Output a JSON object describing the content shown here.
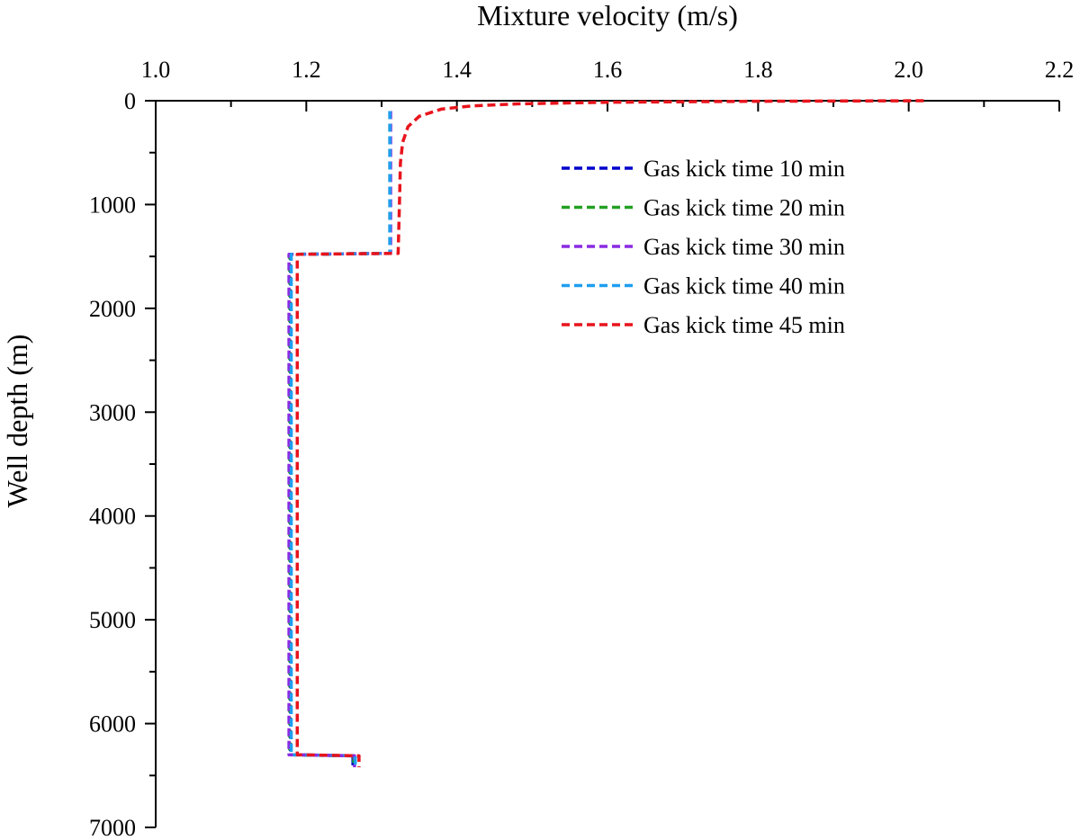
{
  "chart_data": {
    "type": "line",
    "xlabel": "Mixture velocity (m/s)",
    "ylabel": "Well depth (m)",
    "xlim": [
      1.0,
      2.2
    ],
    "ylim": [
      7000,
      0
    ],
    "x_axis_position": "top",
    "y_axis_inverted": true,
    "grid": false,
    "legend_position": "top-right",
    "x_ticks": [
      1.0,
      1.2,
      1.4,
      1.6,
      1.8,
      2.0,
      2.2
    ],
    "x_tick_labels": [
      "1.0",
      "1.2",
      "1.4",
      "1.6",
      "1.8",
      "2.0",
      "2.2"
    ],
    "y_ticks": [
      0,
      1000,
      2000,
      3000,
      4000,
      5000,
      6000,
      7000
    ],
    "y_tick_labels": [
      "0",
      "1000",
      "2000",
      "3000",
      "4000",
      "5000",
      "6000",
      "7000"
    ],
    "series": [
      {
        "name": "Gas kick time 10 min",
        "color": "#0000cc",
        "points": [
          [
            1.311,
            100
          ],
          [
            1.311,
            1470
          ],
          [
            1.179,
            1480
          ],
          [
            1.179,
            6300
          ],
          [
            1.262,
            6310
          ],
          [
            1.262,
            6420
          ]
        ]
      },
      {
        "name": "Gas kick time 20 min",
        "color": "#22a022",
        "points": [
          [
            1.311,
            100
          ],
          [
            1.311,
            1470
          ],
          [
            1.178,
            1480
          ],
          [
            1.178,
            6300
          ],
          [
            1.263,
            6310
          ],
          [
            1.263,
            6420
          ]
        ]
      },
      {
        "name": "Gas kick time 30 min",
        "color": "#8a2be2",
        "points": [
          [
            1.312,
            100
          ],
          [
            1.312,
            1470
          ],
          [
            1.177,
            1480
          ],
          [
            1.177,
            6300
          ],
          [
            1.264,
            6310
          ],
          [
            1.264,
            6420
          ]
        ]
      },
      {
        "name": "Gas kick time 40 min",
        "color": "#1e9ef0",
        "points": [
          [
            1.311,
            100
          ],
          [
            1.311,
            1470
          ],
          [
            1.18,
            1480
          ],
          [
            1.18,
            6300
          ],
          [
            1.265,
            6310
          ],
          [
            1.265,
            6420
          ]
        ]
      },
      {
        "name": "Gas kick time 45 min",
        "color": "#e8141c",
        "points": [
          [
            2.02,
            0
          ],
          [
            1.8,
            5
          ],
          [
            1.6,
            15
          ],
          [
            1.48,
            30
          ],
          [
            1.42,
            50
          ],
          [
            1.38,
            80
          ],
          [
            1.35,
            150
          ],
          [
            1.335,
            250
          ],
          [
            1.328,
            400
          ],
          [
            1.325,
            600
          ],
          [
            1.324,
            900
          ],
          [
            1.323,
            1200
          ],
          [
            1.322,
            1470
          ],
          [
            1.188,
            1480
          ],
          [
            1.188,
            6300
          ],
          [
            1.27,
            6310
          ],
          [
            1.27,
            6420
          ]
        ]
      }
    ]
  }
}
